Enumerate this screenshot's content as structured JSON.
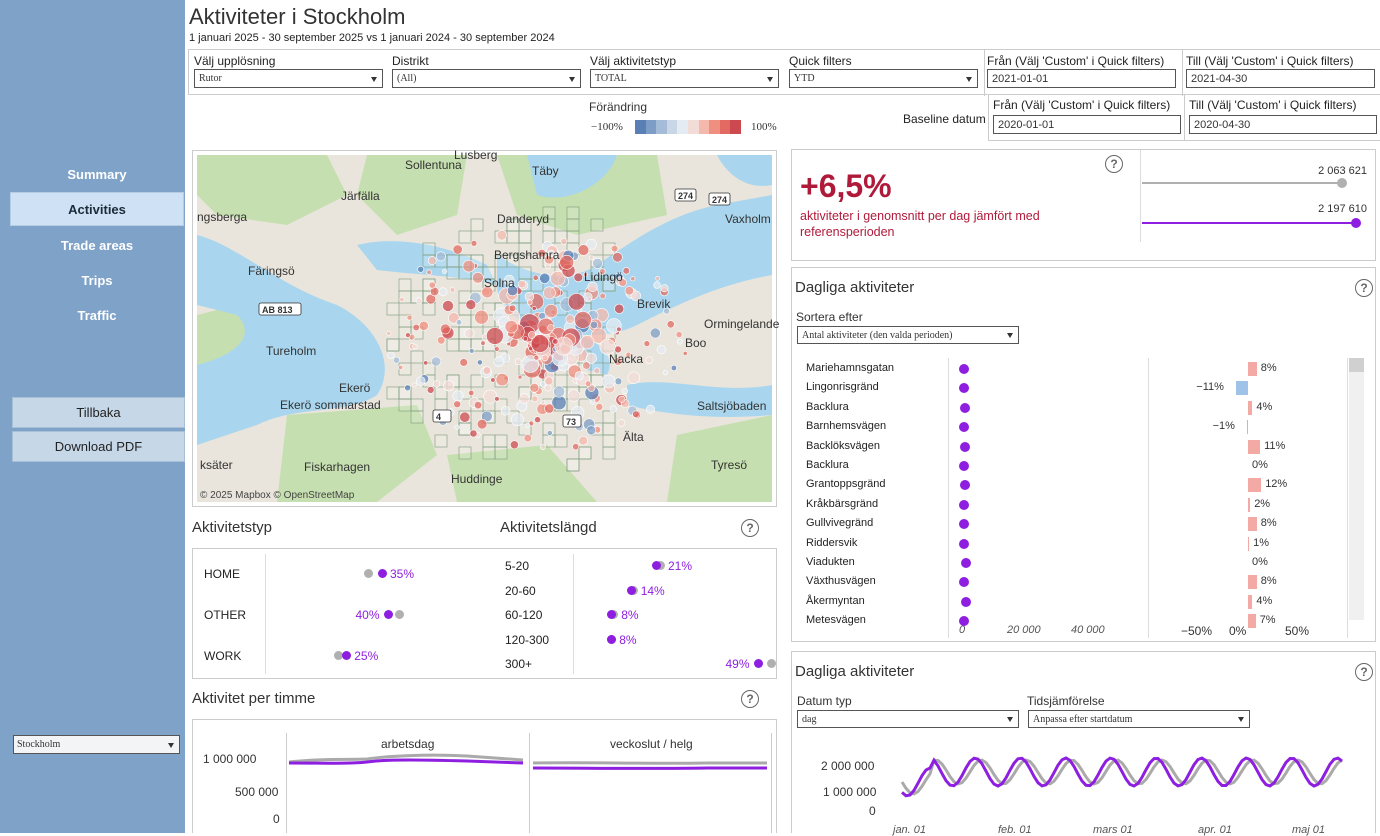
{
  "nav": {
    "items": [
      "Summary",
      "Activities",
      "Trade areas",
      "Trips",
      "Traffic"
    ],
    "active": "Activities",
    "back": "Tillbaka",
    "download": "Download PDF",
    "region": "Stockholm"
  },
  "header": {
    "title": "Aktiviteter i Stockholm",
    "subtitle": "1 januari 2025 - 30 september 2025  vs 1 januari 2024 - 30 september 2024"
  },
  "filters": {
    "resolution": {
      "label": "Välj upplösning",
      "value": "Rutor"
    },
    "district": {
      "label": "Distrikt",
      "value": "(All)"
    },
    "activity_type": {
      "label": "Välj aktivitetstyp",
      "value": "TOTAL"
    },
    "quick": {
      "label": "Quick filters",
      "value": "YTD"
    },
    "from": {
      "label": "Från (Välj 'Custom' i Quick filters)",
      "value": "2021-01-01"
    },
    "to": {
      "label": "Till (Välj 'Custom' i Quick filters)",
      "value": "2021-04-30"
    },
    "baseline_label": "Baseline datum",
    "baseline_from": {
      "label": "Från (Välj 'Custom' i Quick filters)",
      "value": "2020-01-01"
    },
    "baseline_to": {
      "label": "Till (Välj 'Custom' i Quick filters)",
      "value": "2020-04-30"
    },
    "change_legend": {
      "title": "Förändring",
      "min": "−100%",
      "max": "100%",
      "colors": [
        "#5a7fb5",
        "#7e9dc6",
        "#a4bcd8",
        "#c8d6e6",
        "#e4ebf2",
        "#f2dcd8",
        "#f4b8ad",
        "#ef8f80",
        "#e26a62",
        "#cc4a4f"
      ]
    }
  },
  "map": {
    "attribution": "© 2025 Mapbox  © OpenStreetMap",
    "places": [
      "Sollentuna",
      "Täby",
      "Järfälla",
      "Danderyd",
      "Vaxholm",
      "ngsberga",
      "Bergshamra",
      "Lidingö",
      "Färingsö",
      "Solna",
      "Brevik",
      "Ormingelande",
      "Tureholm",
      "Nacka",
      "Boo",
      "Ekerö",
      "Ekerö sommarstad",
      "Saltsjöbaden",
      "Älta",
      "ksäter",
      "Fiskarhagen",
      "Tyresö",
      "Huddinge",
      "Lusberg"
    ],
    "roads": [
      "274",
      "274",
      "AB 813",
      "73",
      "4"
    ]
  },
  "kpi": {
    "value": "+6,5%",
    "text": "aktiviteter i genomsnitt per dag jämfört med referensperioden",
    "baseline": "2 063 621",
    "current": "2 197 610",
    "accent": "#b01a3a",
    "purple": "#8e1ee0",
    "grey": "#b0b0b0"
  },
  "daily": {
    "title": "Dagliga aktiviteter",
    "sort_label": "Sortera efter",
    "sort_value": "Antal aktiviteter (den valda perioden)",
    "rows": [
      {
        "name": "Mariehamnsgatan",
        "act": 0.04,
        "pct": "8%",
        "chg": 8
      },
      {
        "name": "Lingonrisgränd",
        "act": 0.03,
        "pct": "−11%",
        "chg": -11
      },
      {
        "name": "Backlura",
        "act": 0.05,
        "pct": "4%",
        "chg": 4
      },
      {
        "name": "Barnhemsvägen",
        "act": 0.04,
        "pct": "−1%",
        "chg": -1
      },
      {
        "name": "Backlöksvägen",
        "act": 0.05,
        "pct": "11%",
        "chg": 11
      },
      {
        "name": "Backlura",
        "act": 0.04,
        "pct": "0%",
        "chg": 0
      },
      {
        "name": "Grantoppsgränd",
        "act": 0.05,
        "pct": "12%",
        "chg": 12
      },
      {
        "name": "Kråkbärsgränd",
        "act": 0.03,
        "pct": "2%",
        "chg": 2
      },
      {
        "name": "Gullvivegränd",
        "act": 0.04,
        "pct": "8%",
        "chg": 8
      },
      {
        "name": "Riddersvik",
        "act": 0.04,
        "pct": "1%",
        "chg": 1
      },
      {
        "name": "Viadukten",
        "act": 0.06,
        "pct": "0%",
        "chg": 0
      },
      {
        "name": "Växthusvägen",
        "act": 0.04,
        "pct": "8%",
        "chg": 8
      },
      {
        "name": "Åkermyntan",
        "act": 0.06,
        "pct": "4%",
        "chg": 4
      },
      {
        "name": "Metesvägen",
        "act": 0.04,
        "pct": "7%",
        "chg": 7
      }
    ],
    "x_axis1": [
      "0",
      "20 000",
      "40 000"
    ],
    "x_axis2": [
      "−50%",
      "0%",
      "50%"
    ]
  },
  "types": {
    "title": "Aktivitetstyp",
    "rows": [
      {
        "name": "HOME",
        "pct": "35%",
        "cur": 0.4,
        "base": 0.35
      },
      {
        "name": "OTHER",
        "pct": "40%",
        "cur": 0.42,
        "base": 0.46
      },
      {
        "name": "WORK",
        "pct": "25%",
        "cur": 0.27,
        "base": 0.24
      }
    ]
  },
  "lengths": {
    "title": "Aktivitetslängd",
    "rows": [
      {
        "name": "5-20",
        "pct": "21%",
        "cur": 0.38,
        "base": 0.4
      },
      {
        "name": "20-60",
        "pct": "14%",
        "cur": 0.25,
        "base": 0.26
      },
      {
        "name": "60-120",
        "pct": "8%",
        "cur": 0.15,
        "base": 0.16
      },
      {
        "name": "120-300",
        "pct": "8%",
        "cur": 0.15,
        "base": 0.15
      },
      {
        "name": "300+",
        "pct": "49%",
        "cur": 0.9,
        "base": 0.97
      }
    ]
  },
  "hourly": {
    "title": "Aktivitet per timme",
    "panels": [
      "arbetsdag",
      "veckoslut / helg"
    ],
    "y_ticks": [
      "1 000 000",
      "500 000",
      "0"
    ]
  },
  "daily2": {
    "title": "Dagliga aktiviteter",
    "date_type_label": "Datum typ",
    "date_type_value": "dag",
    "compare_label": "Tidsjämförelse",
    "compare_value": "Anpassa efter startdatum",
    "y_ticks": [
      "2 000 000",
      "1 000 000",
      "0"
    ],
    "x_ticks": [
      "jan. 01",
      "feb. 01",
      "mars 01",
      "apr. 01",
      "maj 01"
    ]
  },
  "chart_data": [
    {
      "type": "bar",
      "title": "Dagliga aktiviteter",
      "categories": [
        "Mariehamnsgatan",
        "Lingonrisgränd",
        "Backlura",
        "Barnhemsvägen",
        "Backlöksvägen",
        "Backlura",
        "Grantoppsgränd",
        "Kråkbärsgränd",
        "Gullvivegränd",
        "Riddersvik",
        "Viadukten",
        "Växthusvägen",
        "Åkermyntan",
        "Metesvägen"
      ],
      "values": [
        8,
        -11,
        4,
        -1,
        11,
        0,
        12,
        2,
        8,
        1,
        0,
        8,
        4,
        7
      ]
    },
    {
      "type": "scatter",
      "title": "Aktivitetstyp",
      "categories": [
        "HOME",
        "OTHER",
        "WORK"
      ],
      "values": [
        35,
        40,
        25
      ]
    },
    {
      "type": "scatter",
      "title": "Aktivitetslängd",
      "categories": [
        "5-20",
        "20-60",
        "60-120",
        "120-300",
        "300+"
      ],
      "values": [
        21,
        14,
        8,
        8,
        49
      ]
    }
  ]
}
